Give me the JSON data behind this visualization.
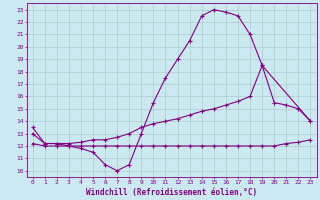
{
  "title": "",
  "xlabel": "Windchill (Refroidissement éolien,°C)",
  "ylabel": "",
  "bg_color": "#cce8f0",
  "line_color": "#800080",
  "grid_color": "#aacccc",
  "xlim": [
    -0.5,
    23.5
  ],
  "ylim": [
    9.5,
    23.5
  ],
  "xticks": [
    0,
    1,
    2,
    3,
    4,
    5,
    6,
    7,
    8,
    9,
    10,
    11,
    12,
    13,
    14,
    15,
    16,
    17,
    18,
    19,
    20,
    21,
    22,
    23
  ],
  "yticks": [
    10,
    11,
    12,
    13,
    14,
    15,
    16,
    17,
    18,
    19,
    20,
    21,
    22,
    23
  ],
  "line1_x": [
    0,
    1,
    2,
    3,
    4,
    5,
    6,
    7,
    8,
    9,
    10,
    11,
    12,
    13,
    14,
    15,
    16,
    17,
    18,
    19,
    23
  ],
  "line1_y": [
    13.5,
    12.2,
    12.2,
    12.0,
    11.8,
    11.5,
    10.5,
    10.0,
    10.5,
    13.0,
    15.5,
    17.5,
    19.0,
    20.5,
    22.5,
    23.0,
    22.8,
    22.5,
    21.0,
    18.5,
    14.0
  ],
  "line2_x": [
    0,
    1,
    2,
    3,
    4,
    5,
    6,
    7,
    8,
    9,
    10,
    11,
    12,
    13,
    14,
    15,
    16,
    17,
    18,
    19,
    20,
    21,
    22,
    23
  ],
  "line2_y": [
    13.0,
    12.2,
    12.2,
    12.2,
    12.3,
    12.5,
    12.5,
    12.7,
    13.0,
    13.5,
    13.8,
    14.0,
    14.2,
    14.5,
    14.8,
    15.0,
    15.3,
    15.6,
    16.0,
    18.5,
    15.5,
    15.3,
    15.0,
    14.0
  ],
  "line3_x": [
    0,
    1,
    2,
    3,
    4,
    5,
    6,
    7,
    8,
    9,
    10,
    11,
    12,
    13,
    14,
    15,
    16,
    17,
    18,
    19,
    20,
    21,
    22,
    23
  ],
  "line3_y": [
    12.2,
    12.0,
    12.0,
    12.0,
    12.0,
    12.0,
    12.0,
    12.0,
    12.0,
    12.0,
    12.0,
    12.0,
    12.0,
    12.0,
    12.0,
    12.0,
    12.0,
    12.0,
    12.0,
    12.0,
    12.0,
    12.2,
    12.3,
    12.5
  ],
  "tick_fontsize": 4.5,
  "xlabel_fontsize": 5.5
}
